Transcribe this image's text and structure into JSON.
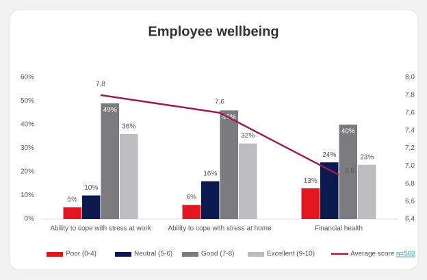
{
  "chart_data": {
    "type": "bar",
    "title": "Employee wellbeing",
    "categories": [
      "Ability to cope with stress at work",
      "Ability to cope with stress at home",
      "Financial health"
    ],
    "series": [
      {
        "name": "Poor (0-4)",
        "color": "#e3151f",
        "values": [
          5,
          6,
          13
        ],
        "value_labels": [
          "5%",
          "6%",
          "13%"
        ]
      },
      {
        "name": "Neutral (5-6)",
        "color": "#0b1a4e",
        "values": [
          10,
          16,
          24
        ],
        "value_labels": [
          "10%",
          "16%",
          "24%"
        ]
      },
      {
        "name": "Good (7-8)",
        "color": "#7b7b7d",
        "values": [
          49,
          46,
          40
        ],
        "value_labels": [
          "49%",
          "46%",
          "40%"
        ]
      },
      {
        "name": "Excellent (9-10)",
        "color": "#bdbdbf",
        "values": [
          36,
          32,
          23
        ],
        "value_labels": [
          "36%",
          "32%",
          "23%"
        ]
      },
      {
        "name": "Average score",
        "color": "#9c1c5b",
        "type": "line",
        "axis": "y2",
        "values": [
          7.8,
          7.6,
          6.9
        ],
        "value_labels": [
          "7,8",
          "7,6",
          "6,9"
        ]
      }
    ],
    "sample_size": "n=502",
    "ylim": [
      0,
      60
    ],
    "yticks": [
      {
        "value": 0,
        "label": "0%"
      },
      {
        "value": 10,
        "label": "10%"
      },
      {
        "value": 20,
        "label": "20%"
      },
      {
        "value": 30,
        "label": "30%"
      },
      {
        "value": 40,
        "label": "40%"
      },
      {
        "value": 50,
        "label": "50%"
      },
      {
        "value": 60,
        "label": "60%"
      }
    ],
    "y2lim": [
      6.4,
      8.0
    ],
    "y2ticks": [
      {
        "value": 6.4,
        "label": "6,4"
      },
      {
        "value": 6.6,
        "label": "6,6"
      },
      {
        "value": 6.8,
        "label": "6,8"
      },
      {
        "value": 7.0,
        "label": "7,0"
      },
      {
        "value": 7.2,
        "label": "7,2"
      },
      {
        "value": 7.4,
        "label": "7,4"
      },
      {
        "value": 7.6,
        "label": "7,6"
      },
      {
        "value": 7.8,
        "label": "7,8"
      },
      {
        "value": 8.0,
        "label": "8,0"
      }
    ],
    "legend": "bottom"
  }
}
